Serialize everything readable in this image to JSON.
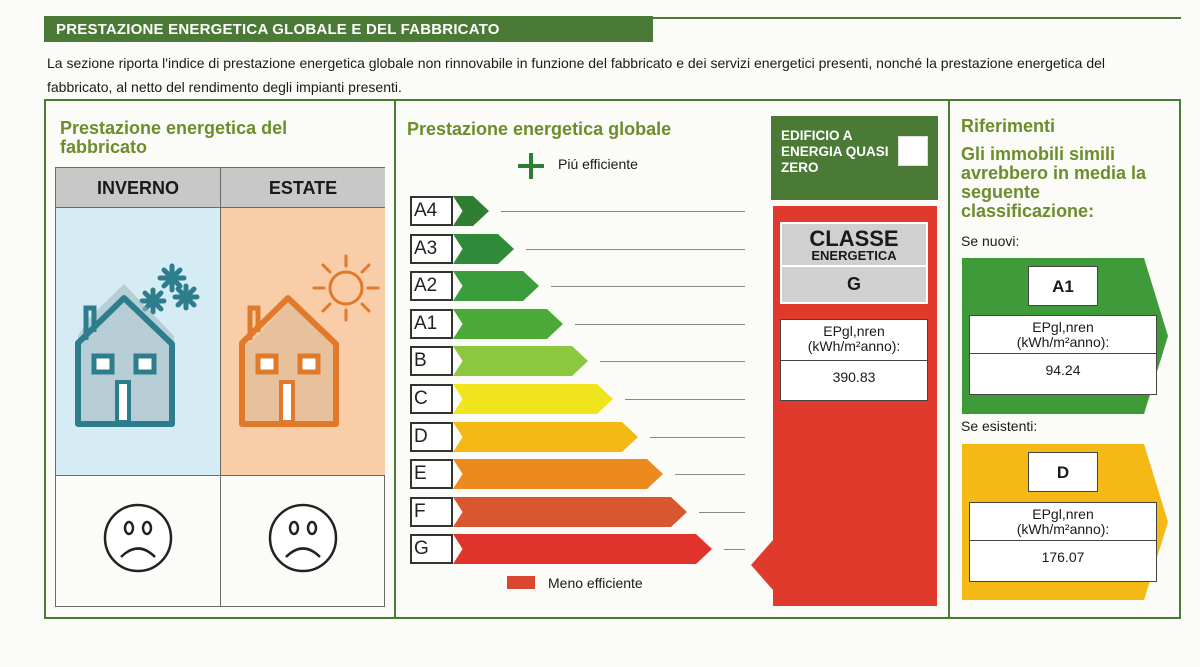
{
  "header": {
    "title": "PRESTAZIONE ENERGETICA GLOBALE E DEL FABBRICATO",
    "intro": "La sezione riporta l'indice di prestazione energetica globale non rinnovabile in funzione del fabbricato e dei servizi energetici presenti, nonché la prestazione energetica del fabbricato, al netto del rendimento degli impianti presenti."
  },
  "fabbricato": {
    "title": "Prestazione energetica del fabbricato",
    "winter_label": "INVERNO",
    "summer_label": "ESTATE",
    "winter_icon": "house-snowflake-icon",
    "summer_icon": "house-sun-icon",
    "winter_rating_icon": "sad-face-icon",
    "summer_rating_icon": "sad-face-icon",
    "colors": {
      "winter_bg": "#d6ecf4",
      "summer_bg": "#f9cda8",
      "winter_house": "#2e7d8c",
      "summer_house": "#e07a2a"
    }
  },
  "globale": {
    "title": "Prestazione energetica globale",
    "more_efficient": "Piú efficiente",
    "less_efficient": "Meno efficiente",
    "classes": [
      {
        "label": "A4",
        "color": "#2e7d32"
      },
      {
        "label": "A3",
        "color": "#2f8a3a"
      },
      {
        "label": "A2",
        "color": "#3a9c3a"
      },
      {
        "label": "A1",
        "color": "#4aaa35"
      },
      {
        "label": "B",
        "color": "#8dc63f"
      },
      {
        "label": "C",
        "color": "#f0e41c"
      },
      {
        "label": "D",
        "color": "#f5b915"
      },
      {
        "label": "E",
        "color": "#ec8a1e"
      },
      {
        "label": "F",
        "color": "#d9572f"
      },
      {
        "label": "G",
        "color": "#e0332b"
      }
    ],
    "current_class_index": 9
  },
  "nzeb": {
    "label": "EDIFICIO A ENERGIA QUASI ZERO",
    "checked": false
  },
  "classe_energetica": {
    "title": "CLASSE",
    "subtitle": "ENERGETICA",
    "value": "G",
    "ep_label_1": "EPgl,nren",
    "ep_label_2": "(kWh/m²anno):",
    "ep_value": "390.83"
  },
  "riferimenti": {
    "title": "Riferimenti",
    "subtitle": "Gli immobili simili avrebbero in media la seguente classificazione:",
    "nuovi": {
      "label": "Se nuovi:",
      "class": "A1",
      "ep_label_1": "EPgl,nren",
      "ep_label_2": "(kWh/m²anno):",
      "ep_value": "94.24",
      "color": "#3f9a3a"
    },
    "esistenti": {
      "label": "Se esistenti:",
      "class": "D",
      "ep_label_1": "EPgl,nren",
      "ep_label_2": "(kWh/m²anno):",
      "ep_value": "176.07",
      "color": "#f5b915"
    }
  }
}
